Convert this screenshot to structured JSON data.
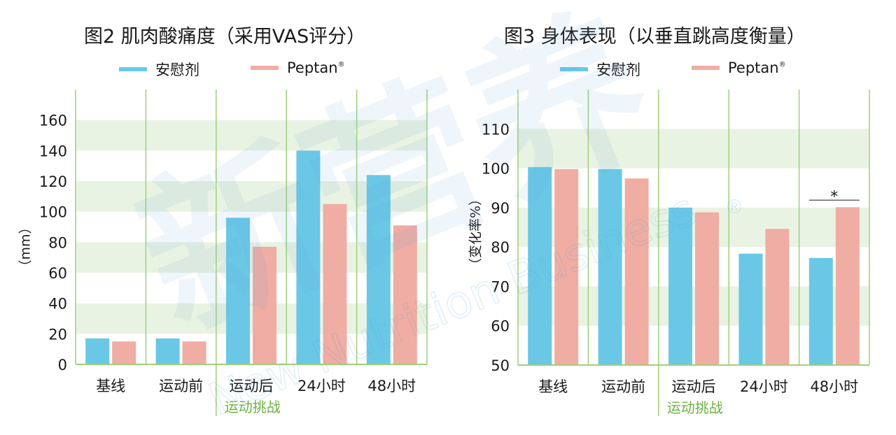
{
  "colors": {
    "placebo": "#6ac8e6",
    "peptan": "#f0ada3",
    "band": "#e9f3e3",
    "divider": "#9fcf7a",
    "challenge_text": "#6cb33f"
  },
  "watermark": {
    "cn": "新营养",
    "en": "New Nutrition Business",
    "reg": "®"
  },
  "chart_data": [
    {
      "type": "bar",
      "title": "图2 肌肉酸痛度（采用VAS评分）",
      "ylabel": "（mm）",
      "categories": [
        "基线",
        "运动前",
        "运动后",
        "24小时",
        "48小时"
      ],
      "group_label": "运动挑战",
      "series": [
        {
          "name": "安慰剂",
          "values": [
            17,
            17,
            96,
            140,
            124
          ]
        },
        {
          "name": "Peptan",
          "name_mark": "®",
          "values": [
            15,
            15,
            77,
            105,
            91
          ]
        }
      ],
      "ylim": [
        0,
        180
      ],
      "yticks": [
        0,
        20,
        40,
        60,
        80,
        100,
        120,
        140,
        160
      ],
      "annotations": []
    },
    {
      "type": "bar",
      "title": "图3 身体表现（以垂直跳高度衡量）",
      "ylabel": "（变化率%）",
      "categories": [
        "基线",
        "运动前",
        "运动后",
        "24小时",
        "48小时"
      ],
      "group_label": "运动挑战",
      "series": [
        {
          "name": "安慰剂",
          "values": [
            100.3,
            99.8,
            90,
            78.3,
            77.2
          ]
        },
        {
          "name": "Peptan",
          "name_mark": "®",
          "values": [
            99.8,
            97.4,
            88.8,
            84.6,
            90.1
          ]
        }
      ],
      "ylim": [
        50,
        120
      ],
      "yticks": [
        50,
        60,
        70,
        80,
        90,
        100,
        110
      ],
      "annotations": [
        {
          "category": "48小时",
          "text": "*"
        }
      ]
    }
  ]
}
